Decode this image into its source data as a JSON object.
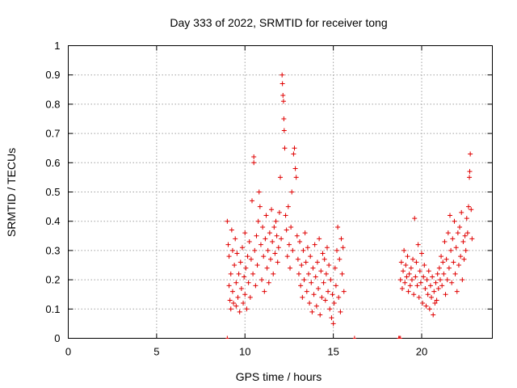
{
  "chart_data": {
    "type": "scatter",
    "title": "Day 333 of 2022, SRMTID for receiver tong",
    "xlabel": "GPS time / hours",
    "ylabel": "SRMTID / TECUs",
    "xlim": [
      0,
      24
    ],
    "ylim": [
      0,
      1
    ],
    "x_ticks": [
      "0",
      "5",
      "10",
      "15",
      "20"
    ],
    "y_ticks": [
      "0",
      "0.1",
      "0.2",
      "0.3",
      "0.4",
      "0.5",
      "0.6",
      "0.7",
      "0.8",
      "0.9",
      "1"
    ],
    "grid": true,
    "marker": "+",
    "color": "#e00000",
    "series": [
      {
        "name": "SRMTID",
        "points": [
          [
            9.0,
            0.4
          ],
          [
            9.05,
            0.32
          ],
          [
            9.1,
            0.28
          ],
          [
            9.1,
            0.18
          ],
          [
            9.15,
            0.13
          ],
          [
            9.2,
            0.22
          ],
          [
            9.2,
            0.1
          ],
          [
            9.25,
            0.37
          ],
          [
            9.3,
            0.16
          ],
          [
            9.3,
            0.3
          ],
          [
            9.35,
            0.12
          ],
          [
            9.4,
            0.25
          ],
          [
            9.45,
            0.34
          ],
          [
            9.5,
            0.19
          ],
          [
            9.5,
            0.11
          ],
          [
            9.55,
            0.29
          ],
          [
            9.6,
            0.14
          ],
          [
            9.65,
            0.22
          ],
          [
            9.7,
            0.09
          ],
          [
            9.75,
            0.26
          ],
          [
            9.8,
            0.17
          ],
          [
            9.85,
            0.31
          ],
          [
            9.9,
            0.12
          ],
          [
            9.95,
            0.21
          ],
          [
            10.0,
            0.36
          ],
          [
            10.0,
            0.15
          ],
          [
            10.05,
            0.24
          ],
          [
            10.1,
            0.1
          ],
          [
            10.15,
            0.28
          ],
          [
            10.2,
            0.19
          ],
          [
            10.25,
            0.33
          ],
          [
            10.3,
            0.14
          ],
          [
            10.35,
            0.27
          ],
          [
            10.4,
            0.47
          ],
          [
            10.45,
            0.22
          ],
          [
            10.5,
            0.6
          ],
          [
            10.5,
            0.62
          ],
          [
            10.55,
            0.3
          ],
          [
            10.6,
            0.18
          ],
          [
            10.65,
            0.35
          ],
          [
            10.7,
            0.25
          ],
          [
            10.75,
            0.4
          ],
          [
            10.8,
            0.5
          ],
          [
            10.85,
            0.45
          ],
          [
            10.9,
            0.32
          ],
          [
            10.95,
            0.2
          ],
          [
            11.0,
            0.38
          ],
          [
            11.05,
            0.28
          ],
          [
            11.1,
            0.16
          ],
          [
            11.15,
            0.34
          ],
          [
            11.2,
            0.42
          ],
          [
            11.25,
            0.24
          ],
          [
            11.3,
            0.3
          ],
          [
            11.35,
            0.19
          ],
          [
            11.4,
            0.36
          ],
          [
            11.45,
            0.27
          ],
          [
            11.5,
            0.44
          ],
          [
            11.55,
            0.33
          ],
          [
            11.6,
            0.22
          ],
          [
            11.65,
            0.38
          ],
          [
            11.7,
            0.29
          ],
          [
            11.75,
            0.4
          ],
          [
            11.8,
            0.35
          ],
          [
            11.85,
            0.26
          ],
          [
            11.9,
            0.31
          ],
          [
            11.95,
            0.43
          ],
          [
            12.0,
            0.55
          ],
          [
            12.05,
            0.34
          ],
          [
            12.1,
            0.9
          ],
          [
            12.12,
            0.87
          ],
          [
            12.15,
            0.83
          ],
          [
            12.18,
            0.81
          ],
          [
            12.2,
            0.75
          ],
          [
            12.22,
            0.71
          ],
          [
            12.25,
            0.65
          ],
          [
            12.3,
            0.42
          ],
          [
            12.35,
            0.37
          ],
          [
            12.4,
            0.28
          ],
          [
            12.45,
            0.45
          ],
          [
            12.5,
            0.32
          ],
          [
            12.55,
            0.24
          ],
          [
            12.6,
            0.38
          ],
          [
            12.65,
            0.5
          ],
          [
            12.7,
            0.3
          ],
          [
            12.75,
            0.63
          ],
          [
            12.8,
            0.65
          ],
          [
            12.85,
            0.58
          ],
          [
            12.9,
            0.55
          ],
          [
            12.95,
            0.35
          ],
          [
            13.0,
            0.27
          ],
          [
            13.05,
            0.22
          ],
          [
            13.1,
            0.33
          ],
          [
            13.15,
            0.18
          ],
          [
            13.2,
            0.25
          ],
          [
            13.25,
            0.14
          ],
          [
            13.3,
            0.3
          ],
          [
            13.35,
            0.2
          ],
          [
            13.4,
            0.36
          ],
          [
            13.45,
            0.26
          ],
          [
            13.5,
            0.16
          ],
          [
            13.55,
            0.31
          ],
          [
            13.6,
            0.22
          ],
          [
            13.65,
            0.12
          ],
          [
            13.7,
            0.28
          ],
          [
            13.75,
            0.19
          ],
          [
            13.8,
            0.09
          ],
          [
            13.85,
            0.24
          ],
          [
            13.9,
            0.15
          ],
          [
            13.95,
            0.32
          ],
          [
            14.0,
            0.21
          ],
          [
            14.05,
            0.11
          ],
          [
            14.1,
            0.26
          ],
          [
            14.15,
            0.17
          ],
          [
            14.2,
            0.34
          ],
          [
            14.25,
            0.08
          ],
          [
            14.3,
            0.23
          ],
          [
            14.35,
            0.14
          ],
          [
            14.4,
            0.29
          ],
          [
            14.45,
            0.19
          ],
          [
            14.5,
            0.27
          ],
          [
            14.55,
            0.13
          ],
          [
            14.6,
            0.22
          ],
          [
            14.65,
            0.31
          ],
          [
            14.7,
            0.16
          ],
          [
            14.75,
            0.25
          ],
          [
            14.8,
            0.1
          ],
          [
            14.85,
            0.2
          ],
          [
            14.9,
            0.07
          ],
          [
            14.95,
            0.15
          ],
          [
            15.0,
            0.05
          ],
          [
            15.05,
            0.12
          ],
          [
            15.1,
            0.24
          ],
          [
            15.15,
            0.18
          ],
          [
            15.2,
            0.3
          ],
          [
            15.25,
            0.38
          ],
          [
            15.3,
            0.14
          ],
          [
            15.35,
            0.27
          ],
          [
            15.4,
            0.09
          ],
          [
            15.45,
            0.34
          ],
          [
            15.5,
            0.22
          ],
          [
            15.55,
            0.31
          ],
          [
            15.6,
            0.16
          ],
          [
            18.8,
            0.2
          ],
          [
            18.85,
            0.26
          ],
          [
            18.9,
            0.17
          ],
          [
            18.95,
            0.23
          ],
          [
            19.0,
            0.3
          ],
          [
            19.05,
            0.19
          ],
          [
            19.1,
            0.25
          ],
          [
            19.15,
            0.21
          ],
          [
            19.2,
            0.28
          ],
          [
            19.25,
            0.16
          ],
          [
            19.3,
            0.22
          ],
          [
            19.35,
            0.18
          ],
          [
            19.4,
            0.24
          ],
          [
            19.45,
            0.2
          ],
          [
            19.5,
            0.27
          ],
          [
            19.55,
            0.15
          ],
          [
            19.6,
            0.41
          ],
          [
            19.65,
            0.21
          ],
          [
            19.7,
            0.26
          ],
          [
            19.75,
            0.18
          ],
          [
            19.8,
            0.32
          ],
          [
            19.85,
            0.14
          ],
          [
            19.9,
            0.23
          ],
          [
            19.95,
            0.19
          ],
          [
            20.0,
            0.29
          ],
          [
            20.05,
            0.12
          ],
          [
            20.1,
            0.21
          ],
          [
            20.15,
            0.25
          ],
          [
            20.2,
            0.17
          ],
          [
            20.25,
            0.11
          ],
          [
            20.3,
            0.2
          ],
          [
            20.35,
            0.15
          ],
          [
            20.4,
            0.23
          ],
          [
            20.45,
            0.1
          ],
          [
            20.5,
            0.18
          ],
          [
            20.55,
            0.14
          ],
          [
            20.6,
            0.21
          ],
          [
            20.65,
            0.08
          ],
          [
            20.7,
            0.16
          ],
          [
            20.75,
            0.12
          ],
          [
            20.8,
            0.19
          ],
          [
            20.85,
            0.13
          ],
          [
            20.9,
            0.22
          ],
          [
            20.95,
            0.17
          ],
          [
            21.0,
            0.24
          ],
          [
            21.05,
            0.2
          ],
          [
            21.1,
            0.28
          ],
          [
            21.15,
            0.18
          ],
          [
            21.2,
            0.26
          ],
          [
            21.25,
            0.22
          ],
          [
            21.3,
            0.33
          ],
          [
            21.35,
            0.15
          ],
          [
            21.4,
            0.27
          ],
          [
            21.45,
            0.2
          ],
          [
            21.5,
            0.36
          ],
          [
            21.55,
            0.24
          ],
          [
            21.6,
            0.42
          ],
          [
            21.65,
            0.3
          ],
          [
            21.7,
            0.19
          ],
          [
            21.75,
            0.34
          ],
          [
            21.8,
            0.26
          ],
          [
            21.85,
            0.4
          ],
          [
            21.9,
            0.22
          ],
          [
            21.95,
            0.31
          ],
          [
            22.0,
            0.16
          ],
          [
            22.05,
            0.36
          ],
          [
            22.1,
            0.25
          ],
          [
            22.15,
            0.38
          ],
          [
            22.2,
            0.28
          ],
          [
            22.25,
            0.43
          ],
          [
            22.3,
            0.2
          ],
          [
            22.35,
            0.33
          ],
          [
            22.4,
            0.27
          ],
          [
            22.45,
            0.35
          ],
          [
            22.5,
            0.3
          ],
          [
            22.55,
            0.41
          ],
          [
            22.6,
            0.36
          ],
          [
            22.65,
            0.45
          ],
          [
            22.7,
            0.55
          ],
          [
            22.72,
            0.57
          ],
          [
            22.75,
            0.63
          ],
          [
            22.8,
            0.44
          ],
          [
            22.85,
            0.34
          ]
        ]
      }
    ],
    "zero_markers_x": [
      9.0,
      18.7,
      18.75,
      18.8,
      16.2
    ]
  }
}
